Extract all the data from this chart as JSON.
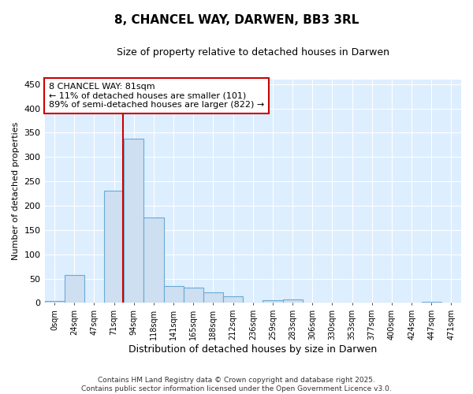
{
  "title": "8, CHANCEL WAY, DARWEN, BB3 3RL",
  "subtitle": "Size of property relative to detached houses in Darwen",
  "xlabel": "Distribution of detached houses by size in Darwen",
  "ylabel": "Number of detached properties",
  "categories": [
    "0sqm",
    "24sqm",
    "47sqm",
    "71sqm",
    "94sqm",
    "118sqm",
    "141sqm",
    "165sqm",
    "188sqm",
    "212sqm",
    "236sqm",
    "259sqm",
    "283sqm",
    "306sqm",
    "330sqm",
    "353sqm",
    "377sqm",
    "400sqm",
    "424sqm",
    "447sqm",
    "471sqm"
  ],
  "values": [
    4,
    57,
    0,
    231,
    337,
    176,
    35,
    32,
    22,
    14,
    0,
    6,
    7,
    0,
    0,
    0,
    0,
    0,
    0,
    2,
    0
  ],
  "bar_color": "#cddff0",
  "bar_edge_color": "#6aaad4",
  "fig_background": "#ffffff",
  "plot_background": "#ddeeff",
  "grid_color": "#ffffff",
  "annotation_text": "8 CHANCEL WAY: 81sqm\n← 11% of detached houses are smaller (101)\n89% of semi-detached houses are larger (822) →",
  "annotation_box_color": "#cc0000",
  "vline_color": "#cc0000",
  "ylim": [
    0,
    460
  ],
  "yticks": [
    0,
    50,
    100,
    150,
    200,
    250,
    300,
    350,
    400,
    450
  ],
  "footer_line1": "Contains HM Land Registry data © Crown copyright and database right 2025.",
  "footer_line2": "Contains public sector information licensed under the Open Government Licence v3.0.",
  "vline_index": 3.435
}
